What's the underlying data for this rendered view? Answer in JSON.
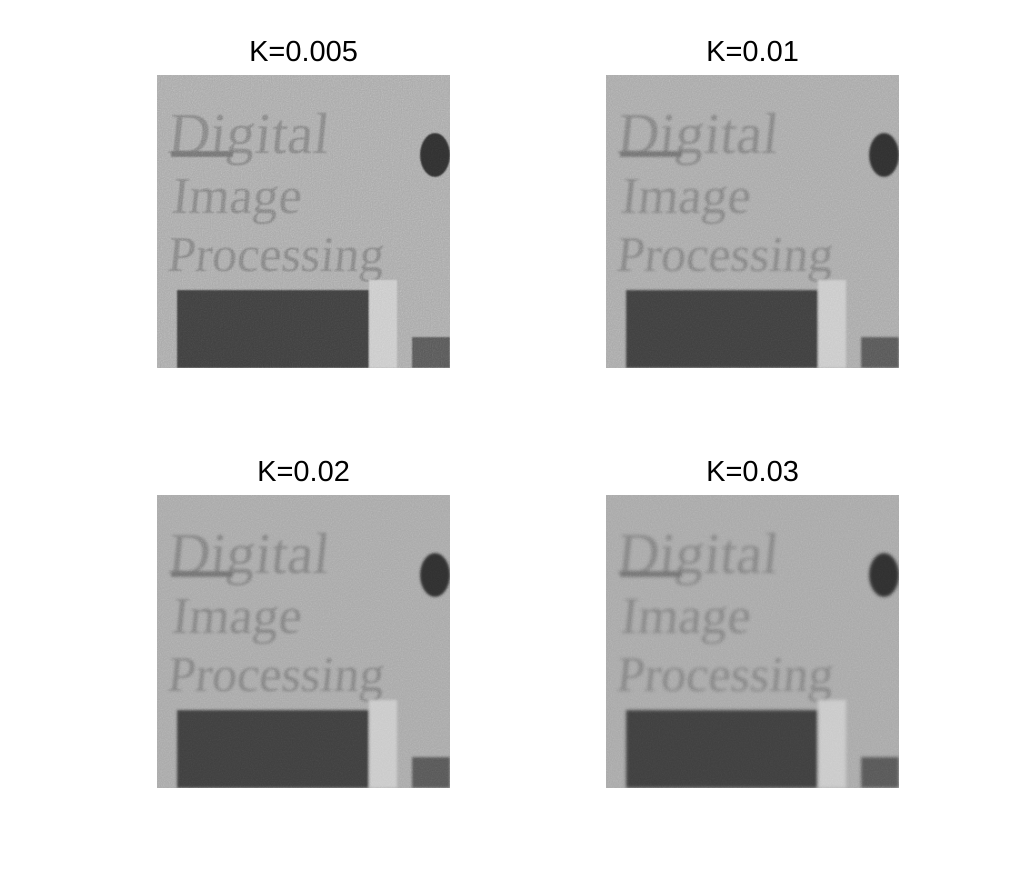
{
  "panels": [
    {
      "title": "K=0.005",
      "noise_level": 0.9,
      "blur": 0.8
    },
    {
      "title": "K=0.01",
      "noise_level": 0.7,
      "blur": 1.0
    },
    {
      "title": "K=0.02",
      "noise_level": 0.5,
      "blur": 1.3
    },
    {
      "title": "K=0.03",
      "noise_level": 0.4,
      "blur": 1.5
    }
  ],
  "image_text": [
    "Digital",
    "Image",
    "Processing"
  ],
  "colors": {
    "background": "#ffffff",
    "image_base": "#a6a6a6",
    "image_dark": "#3c3c3c",
    "title_text": "#000000"
  }
}
